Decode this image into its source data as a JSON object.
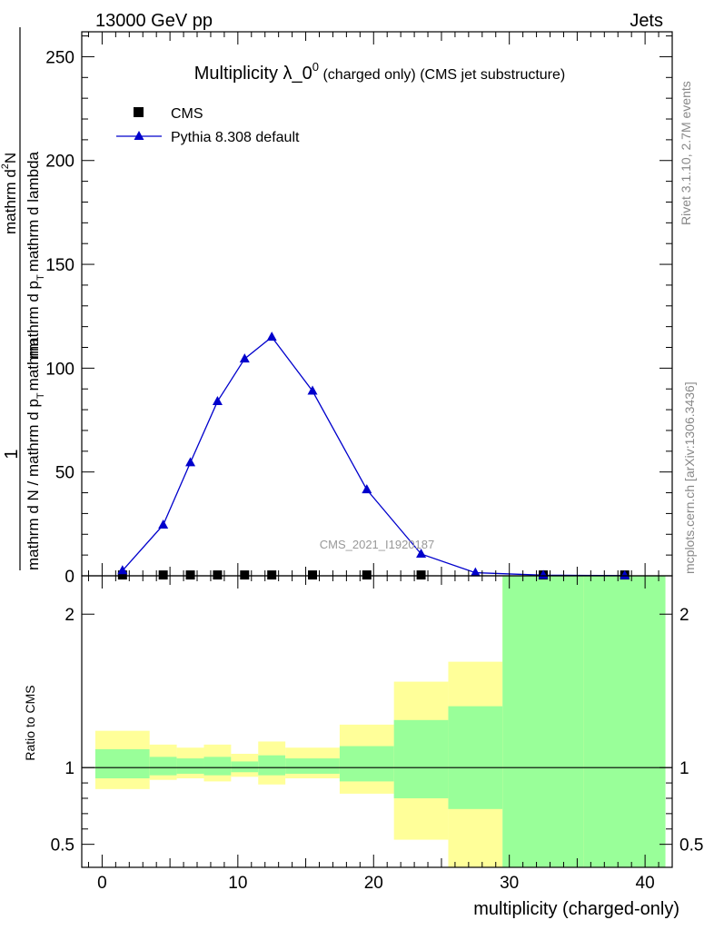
{
  "header": {
    "energy": "13000 GeV pp",
    "process": "Jets"
  },
  "side": {
    "rivet": "Rivet 3.1.10,  2.7M events",
    "mcplots": "mcplots.cern.ch [arXiv:1306.3436]"
  },
  "watermark": "CMS_2021_I1920187",
  "chart_data": {
    "type": "line",
    "title": {
      "main": "Multiplicity λ_0",
      "sup": "0",
      "suffix": " (charged only) (CMS jet substructure)"
    },
    "xlabel": "multiplicity (charged-only)",
    "ylabel": {
      "numerator": "1",
      "denominator": "mathrm d N / mathrm d p",
      "mid": "mathrm d p",
      "right": "mathrm d lambda",
      "top": "mathrm d",
      "top_sup": "2",
      "top_n": "N",
      "sub_t": "T",
      "mathrm": "mathrm"
    },
    "ratio_ylabel": "Ratio to CMS",
    "xlim": [
      -1.5,
      42
    ],
    "ylim": [
      0,
      262
    ],
    "ratio_ylim": [
      0.35,
      2.25
    ],
    "main_yticks": [
      "0",
      "50",
      "100",
      "150",
      "200",
      "250"
    ],
    "main_ytick_values": [
      0,
      50,
      100,
      150,
      200,
      250
    ],
    "ratio_yticks": [
      "0.5",
      "1",
      "2"
    ],
    "ratio_ytick_values": [
      0.5,
      1,
      2
    ],
    "xticks": [
      "0",
      "10",
      "20",
      "30",
      "40"
    ],
    "xtick_values": [
      0,
      10,
      20,
      30,
      40
    ],
    "legend_position": "top-left",
    "series": [
      {
        "name": "CMS",
        "marker": "square",
        "color": "#000000",
        "x": [
          1.5,
          4.5,
          6.5,
          8.5,
          10.5,
          12.5,
          15.5,
          19.5,
          23.5,
          32.5,
          38.5
        ],
        "y": [
          0.4,
          0.4,
          0.4,
          0.4,
          0.4,
          0.4,
          0.4,
          0.4,
          0.4,
          0.4,
          0.4
        ]
      },
      {
        "name": "Pythia 8.308 default",
        "marker": "triangle",
        "color": "#0000cc",
        "x": [
          1.5,
          4.5,
          6.5,
          8.5,
          10.5,
          12.5,
          15.5,
          19.5,
          23.5,
          27.5,
          32.5,
          38.5
        ],
        "y": [
          2.5,
          24.5,
          54.5,
          84,
          104.5,
          115,
          89,
          41.5,
          10.5,
          1.5,
          0.3,
          0.1
        ]
      }
    ],
    "ratio_bands": [
      {
        "xlo": -0.5,
        "xhi": 3.5,
        "y_lo": 0.86,
        "y_hi": 1.24,
        "g_lo": 0.93,
        "g_hi": 1.12
      },
      {
        "xlo": 3.5,
        "xhi": 5.5,
        "y_lo": 0.92,
        "y_hi": 1.15,
        "g_lo": 0.95,
        "g_hi": 1.07
      },
      {
        "xlo": 5.5,
        "xhi": 7.5,
        "y_lo": 0.93,
        "y_hi": 1.13,
        "g_lo": 0.96,
        "g_hi": 1.06
      },
      {
        "xlo": 7.5,
        "xhi": 9.5,
        "y_lo": 0.91,
        "y_hi": 1.15,
        "g_lo": 0.95,
        "g_hi": 1.07
      },
      {
        "xlo": 9.5,
        "xhi": 11.5,
        "y_lo": 0.94,
        "y_hi": 1.09,
        "g_lo": 0.97,
        "g_hi": 1.04
      },
      {
        "xlo": 11.5,
        "xhi": 13.5,
        "y_lo": 0.89,
        "y_hi": 1.17,
        "g_lo": 0.95,
        "g_hi": 1.08
      },
      {
        "xlo": 13.5,
        "xhi": 17.5,
        "y_lo": 0.93,
        "y_hi": 1.13,
        "g_lo": 0.96,
        "g_hi": 1.06
      },
      {
        "xlo": 17.5,
        "xhi": 21.5,
        "y_lo": 0.83,
        "y_hi": 1.28,
        "g_lo": 0.91,
        "g_hi": 1.14
      },
      {
        "xlo": 21.5,
        "xhi": 25.5,
        "y_lo": 0.53,
        "y_hi": 1.56,
        "g_lo": 0.8,
        "g_hi": 1.31
      },
      {
        "xlo": 25.5,
        "xhi": 29.5,
        "y_lo": 0.35,
        "y_hi": 1.69,
        "g_lo": 0.73,
        "g_hi": 1.4
      },
      {
        "xlo": 29.5,
        "xhi": 35.5,
        "y_lo": 0.35,
        "y_hi": 2.25,
        "g_lo": 0.35,
        "g_hi": 2.25
      },
      {
        "xlo": 35.5,
        "xhi": 41.5,
        "y_lo": 0.35,
        "y_hi": 2.25,
        "g_lo": 0.35,
        "g_hi": 2.25
      }
    ],
    "band_colors": {
      "yellow": "#ffff99",
      "green": "#99ff99"
    }
  }
}
